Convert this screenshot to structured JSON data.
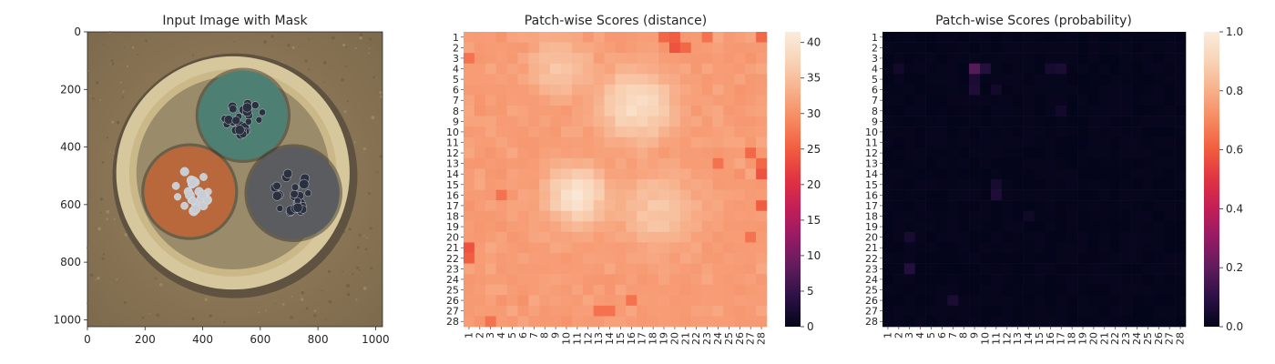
{
  "chart_data": [
    {
      "type": "image",
      "title": "Input Image with Mask",
      "xlabel": "",
      "ylabel": "",
      "xlim": [
        0,
        1024
      ],
      "ylim": [
        1024,
        0
      ],
      "xticks": [
        0,
        200,
        400,
        600,
        800,
        1000
      ],
      "yticks": [
        0,
        200,
        400,
        600,
        800,
        1000
      ],
      "colors": {
        "background": "#8a7454",
        "outer_ring": "#d6c79c",
        "ring_shadow": "#5f5240",
        "inner_fill": "#cbb888",
        "wire_top": "#4d7f73",
        "wire_left": "#b8683a",
        "wire_right": "#5a5c5f",
        "strands": "#2b3040"
      }
    },
    {
      "type": "heatmap",
      "title": "Patch-wise Scores (distance)",
      "xlabel": "",
      "ylabel": "",
      "rows": 28,
      "cols": 28,
      "x_tick_labels": [
        "1",
        "2",
        "3",
        "4",
        "5",
        "6",
        "7",
        "8",
        "9",
        "10",
        "11",
        "12",
        "13",
        "14",
        "15",
        "16",
        "17",
        "18",
        "19",
        "20",
        "21",
        "22",
        "23",
        "24",
        "25",
        "26",
        "27",
        "28"
      ],
      "y_tick_labels": [
        "1",
        "2",
        "3",
        "4",
        "5",
        "6",
        "7",
        "8",
        "9",
        "10",
        "11",
        "12",
        "13",
        "14",
        "15",
        "16",
        "17",
        "18",
        "19",
        "20",
        "21",
        "22",
        "23",
        "24",
        "25",
        "26",
        "27",
        "28"
      ],
      "vmin": 0,
      "vmax": 41.5,
      "base_value": 30.5,
      "hot_regions": [
        {
          "row": 4,
          "col": 9.5,
          "radius": 3.2,
          "peak": 36
        },
        {
          "row": 7.5,
          "col": 16.5,
          "radius": 3.8,
          "peak": 39
        },
        {
          "row": 16,
          "col": 11,
          "radius": 3.0,
          "peak": 40.5
        },
        {
          "row": 17.5,
          "col": 18.5,
          "radius": 4.0,
          "peak": 36
        }
      ],
      "cold_cells": [
        {
          "row": 1,
          "col": 20,
          "value": 25
        },
        {
          "row": 1,
          "col": 19,
          "value": 26
        },
        {
          "row": 2,
          "col": 20,
          "value": 24
        },
        {
          "row": 2,
          "col": 21,
          "value": 26
        },
        {
          "row": 1,
          "col": 23,
          "value": 27
        },
        {
          "row": 1,
          "col": 28,
          "value": 26
        },
        {
          "row": 21,
          "col": 1,
          "value": 24
        },
        {
          "row": 22,
          "col": 1,
          "value": 25
        },
        {
          "row": 14,
          "col": 28,
          "value": 24
        },
        {
          "row": 13,
          "col": 28,
          "value": 26
        },
        {
          "row": 17,
          "col": 28,
          "value": 25
        },
        {
          "row": 12,
          "col": 27,
          "value": 26
        },
        {
          "row": 27,
          "col": 13,
          "value": 27
        },
        {
          "row": 27,
          "col": 14,
          "value": 27
        },
        {
          "row": 28,
          "col": 3,
          "value": 27
        },
        {
          "row": 16,
          "col": 4,
          "value": 27
        },
        {
          "row": 20,
          "col": 27,
          "value": 27
        },
        {
          "row": 26,
          "col": 16,
          "value": 27
        },
        {
          "row": 13,
          "col": 24,
          "value": 27
        },
        {
          "row": 3,
          "col": 1,
          "value": 27
        }
      ],
      "colorbar_ticks": [
        0,
        5,
        10,
        15,
        20,
        25,
        30,
        35,
        40
      ],
      "colormap": [
        "#03051a",
        "#2b1145",
        "#5f1c5d",
        "#941b65",
        "#c21f56",
        "#e13342",
        "#f15c3f",
        "#f6885f",
        "#f7af8a",
        "#f8d3b6",
        "#faebdd"
      ]
    },
    {
      "type": "heatmap",
      "title": "Patch-wise Scores (probability)",
      "xlabel": "",
      "ylabel": "",
      "rows": 28,
      "cols": 28,
      "x_tick_labels": [
        "1",
        "2",
        "3",
        "4",
        "5",
        "6",
        "7",
        "8",
        "9",
        "10",
        "11",
        "12",
        "13",
        "14",
        "15",
        "16",
        "17",
        "18",
        "19",
        "20",
        "21",
        "22",
        "23",
        "24",
        "25",
        "26",
        "27",
        "28"
      ],
      "y_tick_labels": [
        "1",
        "2",
        "3",
        "4",
        "5",
        "6",
        "7",
        "8",
        "9",
        "10",
        "11",
        "12",
        "13",
        "14",
        "15",
        "16",
        "17",
        "18",
        "19",
        "20",
        "21",
        "22",
        "23",
        "24",
        "25",
        "26",
        "27",
        "28"
      ],
      "vmin": 0,
      "vmax": 1.0,
      "base_value": 0.0,
      "hot_cells": [
        {
          "row": 4,
          "col": 9,
          "value": 0.18
        },
        {
          "row": 4,
          "col": 10,
          "value": 0.08
        },
        {
          "row": 5,
          "col": 9,
          "value": 0.06
        },
        {
          "row": 6,
          "col": 9,
          "value": 0.07
        },
        {
          "row": 4,
          "col": 16,
          "value": 0.05
        },
        {
          "row": 4,
          "col": 17,
          "value": 0.06
        },
        {
          "row": 8,
          "col": 17,
          "value": 0.04
        },
        {
          "row": 16,
          "col": 11,
          "value": 0.07
        },
        {
          "row": 15,
          "col": 11,
          "value": 0.05
        },
        {
          "row": 23,
          "col": 3,
          "value": 0.08
        },
        {
          "row": 20,
          "col": 3,
          "value": 0.05
        },
        {
          "row": 26,
          "col": 7,
          "value": 0.06
        },
        {
          "row": 4,
          "col": 2,
          "value": 0.04
        },
        {
          "row": 6,
          "col": 11,
          "value": 0.04
        },
        {
          "row": 18,
          "col": 14,
          "value": 0.03
        }
      ],
      "colorbar_ticks": [
        0.0,
        0.2,
        0.4,
        0.6,
        0.8,
        1.0
      ],
      "colorbar_tick_labels": [
        "0.0",
        "0.2",
        "0.4",
        "0.6",
        "0.8",
        "1.0"
      ],
      "colormap": [
        "#03051a",
        "#2b1145",
        "#5f1c5d",
        "#941b65",
        "#c21f56",
        "#e13342",
        "#f15c3f",
        "#f6885f",
        "#f7af8a",
        "#f8d3b6",
        "#faebdd"
      ]
    }
  ]
}
